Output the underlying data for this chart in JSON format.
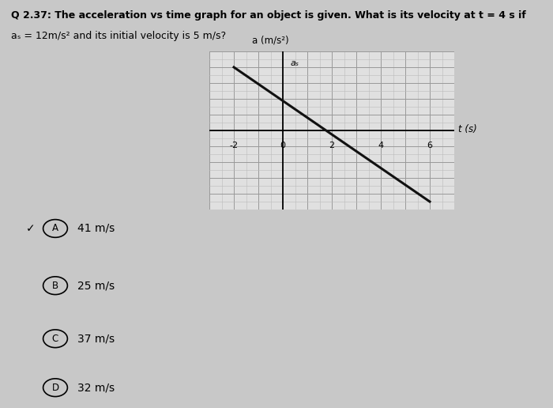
{
  "title_line1": "Q 2.37: The acceleration vs time graph for an object is given. What is its velocity at t = 4 s if",
  "title_line2": "aₛ = 12m/s² and its initial velocity is 5 m/s?",
  "ylabel": "a (m/s²)",
  "xlabel": "t (s)",
  "as_label": "aₛ",
  "xlim": [
    -3,
    7
  ],
  "ylim": [
    -5,
    5
  ],
  "xticks": [
    -2,
    0,
    2,
    4,
    6
  ],
  "line_x": [
    -2,
    6
  ],
  "line_y": [
    4.0,
    -4.5
  ],
  "line_color": "#111111",
  "line_width": 2.2,
  "grid_minor_color": "#bbbbbb",
  "grid_major_color": "#999999",
  "bg_color": "#e0e0e0",
  "fig_color": "#c8c8c8",
  "choices": [
    {
      "letter": "A",
      "text": "41 m/s",
      "correct": true
    },
    {
      "letter": "B",
      "text": "25 m/s",
      "correct": false
    },
    {
      "letter": "C",
      "text": "37 m/s",
      "correct": false
    },
    {
      "letter": "D",
      "text": "32 m/s",
      "correct": false
    }
  ]
}
